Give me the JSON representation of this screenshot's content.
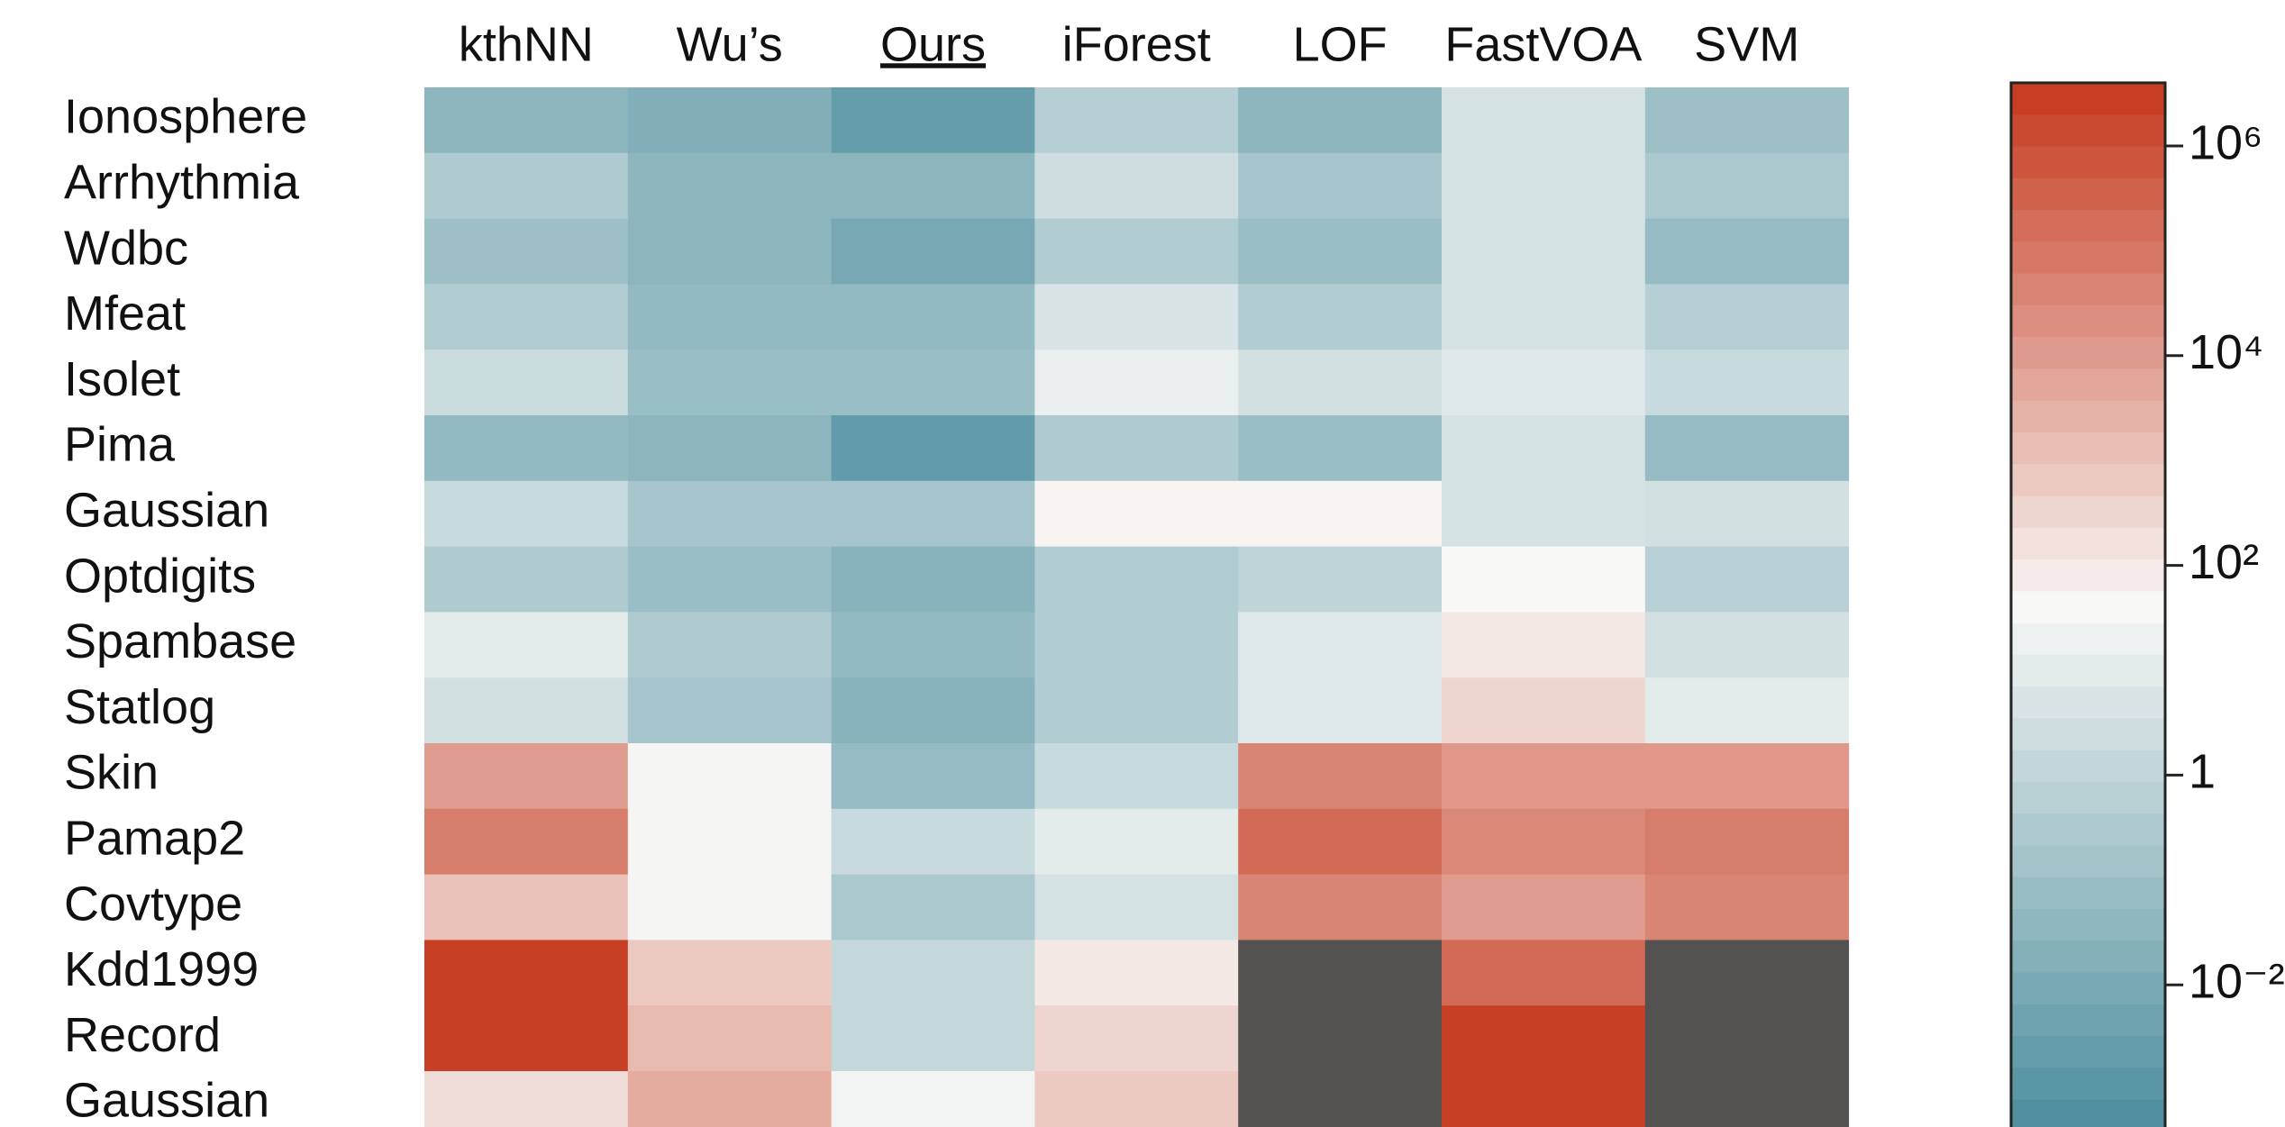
{
  "chart_data": {
    "type": "heatmap",
    "x_categories": [
      "kthNN",
      "Wu’s",
      "Ours",
      "iForest",
      "LOF",
      "FastVOA",
      "SVM"
    ],
    "highlight_column": 2,
    "y_categories": [
      "Ionosphere",
      "Arrhythmia",
      "Wdbc",
      "Mfeat",
      "Isolet",
      "Pima",
      "Gaussian",
      "Optdigits",
      "Spambase",
      "Statlog",
      "Skin",
      "Pamap2",
      "Covtype",
      "Kdd1999",
      "Record",
      "Gaussian"
    ],
    "values": [
      [
        0.032,
        0.016,
        0.0025,
        0.5,
        0.032,
        4,
        0.1
      ],
      [
        0.32,
        0.032,
        0.032,
        2.5,
        0.16,
        4,
        0.25
      ],
      [
        0.1,
        0.032,
        0.0079,
        0.4,
        0.079,
        4,
        0.063
      ],
      [
        0.4,
        0.05,
        0.05,
        5,
        0.4,
        4,
        0.5
      ],
      [
        2,
        0.079,
        0.079,
        16,
        3.2,
        7.9,
        1.6
      ],
      [
        0.05,
        0.032,
        0.002,
        0.32,
        0.079,
        4,
        0.063
      ],
      [
        1.6,
        0.16,
        0.16,
        50,
        50,
        4,
        3.2
      ],
      [
        0.32,
        0.079,
        0.025,
        0.4,
        1,
        40,
        0.63
      ],
      [
        10,
        0.32,
        0.05,
        0.4,
        7.9,
        100,
        3.2
      ],
      [
        3.2,
        0.16,
        0.025,
        0.4,
        7.9,
        320,
        10
      ],
      [
        10000,
        32,
        0.063,
        1.6,
        40000,
        12600,
        12600
      ],
      [
        63000,
        32,
        1.6,
        10,
        200000,
        32000,
        63000
      ],
      [
        1000,
        32,
        0.25,
        4,
        40000,
        10000,
        40000
      ],
      [
        2500000,
        630,
        1.26,
        100,
        null,
        200000,
        null
      ],
      [
        2500000,
        1600,
        1.26,
        320,
        null,
        2500000,
        null
      ],
      [
        200,
        4000,
        25,
        630,
        null,
        2500000,
        null
      ]
    ],
    "log_scale": true,
    "zlim": [
      0.0004,
      4000000
    ],
    "zticks": [
      {
        "value": 1000000,
        "label": "10⁶"
      },
      {
        "value": 10000,
        "label": "10⁴"
      },
      {
        "value": 100,
        "label": "10²"
      },
      1,
      {
        "value": 0.01,
        "label": "10⁻²"
      }
    ],
    "colormap": [
      "#4a8c9c",
      "#f8f8f6",
      "#c5381d"
    ],
    "missing_color": "#545250"
  }
}
